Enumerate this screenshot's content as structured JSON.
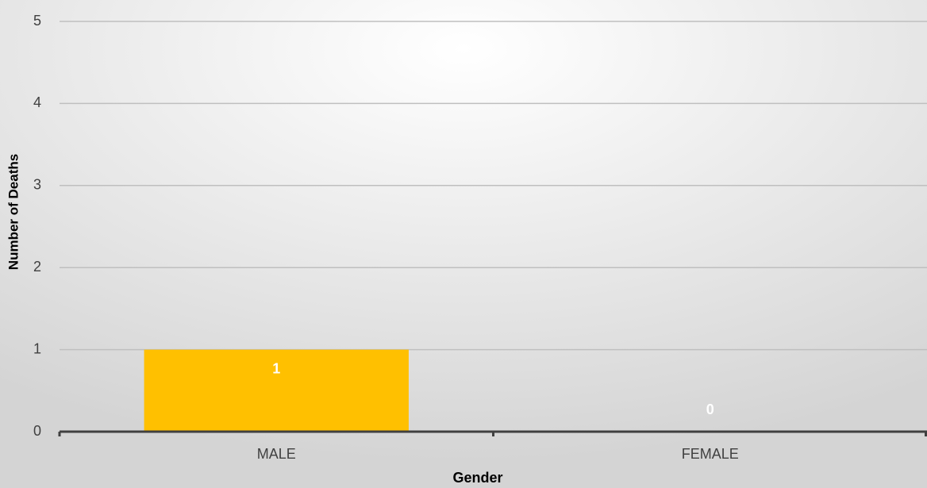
{
  "chart_data": {
    "type": "bar",
    "categories": [
      "MALE",
      "FEMALE"
    ],
    "values": [
      1,
      0
    ],
    "color": "#ffc000",
    "label_color": "#ffffff",
    "ylim": [
      0,
      5
    ],
    "yticks": [
      0,
      1,
      2,
      3,
      4,
      5
    ],
    "grid": true,
    "x_label": "Gender",
    "y_label": "Number of Deaths"
  }
}
